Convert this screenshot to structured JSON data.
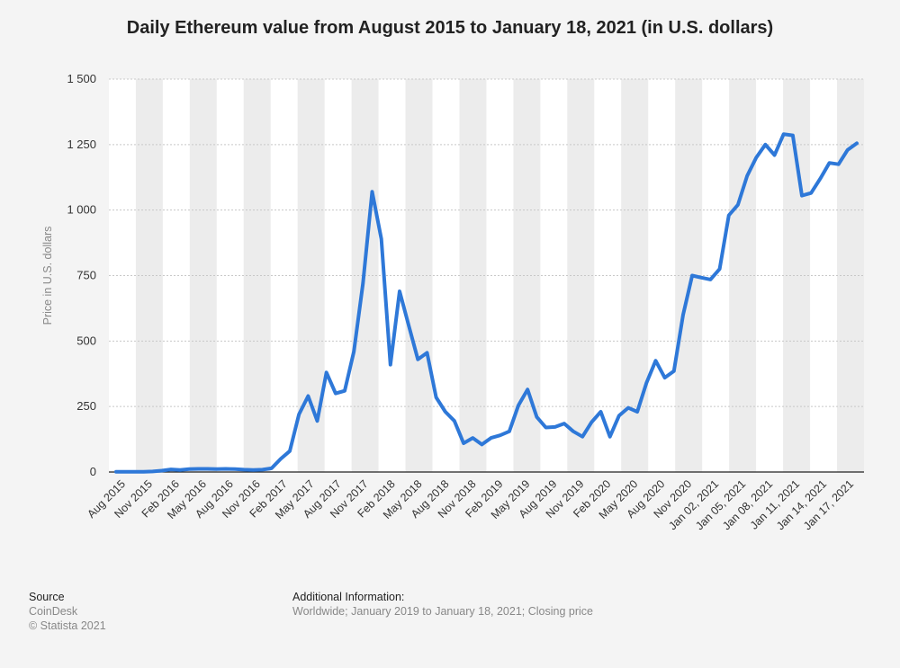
{
  "chart_data": {
    "type": "line",
    "title": "Daily Ethereum value from August 2015 to January 18, 2021 (in U.S. dollars)",
    "xlabel": "",
    "ylabel": "Price in U.S. dollars",
    "ylim": [
      0,
      1500
    ],
    "yticks": [
      0,
      250,
      500,
      750,
      1000,
      1250,
      1500
    ],
    "ytick_labels": [
      "0",
      "250",
      "500",
      "750",
      "1 000",
      "1 250",
      "1 500"
    ],
    "grid": true,
    "x_tick_labels": [
      "Aug 2015",
      "Nov 2015",
      "Feb 2016",
      "May 2016",
      "Aug 2016",
      "Nov 2016",
      "Feb 2017",
      "May 2017",
      "Aug 2017",
      "Nov 2017",
      "Feb 2018",
      "May 2018",
      "Aug 2018",
      "Nov 2018",
      "Feb 2019",
      "May 2019",
      "Aug 2019",
      "Nov 2019",
      "Feb 2020",
      "May 2020",
      "Aug 2020",
      "Nov 2020",
      "Jan 02, 2021",
      "Jan 05, 2021",
      "Jan 08, 2021",
      "Jan 11, 2021",
      "Jan 14, 2021",
      "Jan 17, 2021"
    ],
    "series": [
      {
        "color": "#2e78d8",
        "values": [
          1,
          1,
          1,
          1,
          2,
          5,
          10,
          8,
          11,
          12,
          12,
          11,
          12,
          11,
          9,
          8,
          9,
          14,
          50,
          80,
          220,
          290,
          195,
          380,
          300,
          310,
          460,
          720,
          1070,
          890,
          410,
          690,
          560,
          430,
          455,
          285,
          230,
          195,
          110,
          130,
          105,
          130,
          140,
          155,
          255,
          315,
          210,
          170,
          172,
          185,
          155,
          135,
          190,
          230,
          135,
          215,
          245,
          230,
          340,
          425,
          360,
          385,
          600,
          750,
          742,
          735,
          775,
          980,
          1020,
          1130,
          1200,
          1250,
          1210,
          1290,
          1285,
          1055,
          1065,
          1120,
          1180,
          1175,
          1230,
          1255
        ]
      }
    ]
  },
  "footer": {
    "source_label": "Source",
    "source_value": "CoinDesk",
    "copyright": "© Statista 2021",
    "info_label": "Additional Information:",
    "info_value": "Worldwide; January 2019 to January 18, 2021; Closing price"
  }
}
